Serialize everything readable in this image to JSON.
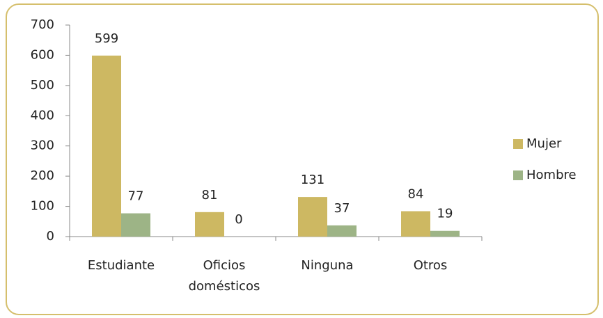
{
  "chart_data": {
    "type": "bar",
    "categories": [
      "Estudiante",
      "Oficios domésticos",
      "Ninguna",
      "Otros"
    ],
    "series": [
      {
        "name": "Mujer",
        "color": "#cdb862",
        "values": [
          599,
          81,
          131,
          84
        ]
      },
      {
        "name": "Hombre",
        "color": "#9db486",
        "values": [
          77,
          0,
          37,
          19
        ]
      }
    ],
    "ylim": [
      0,
      700
    ],
    "yticks": [
      0,
      100,
      200,
      300,
      400,
      500,
      600,
      700
    ],
    "legend": "right",
    "grid": false
  }
}
